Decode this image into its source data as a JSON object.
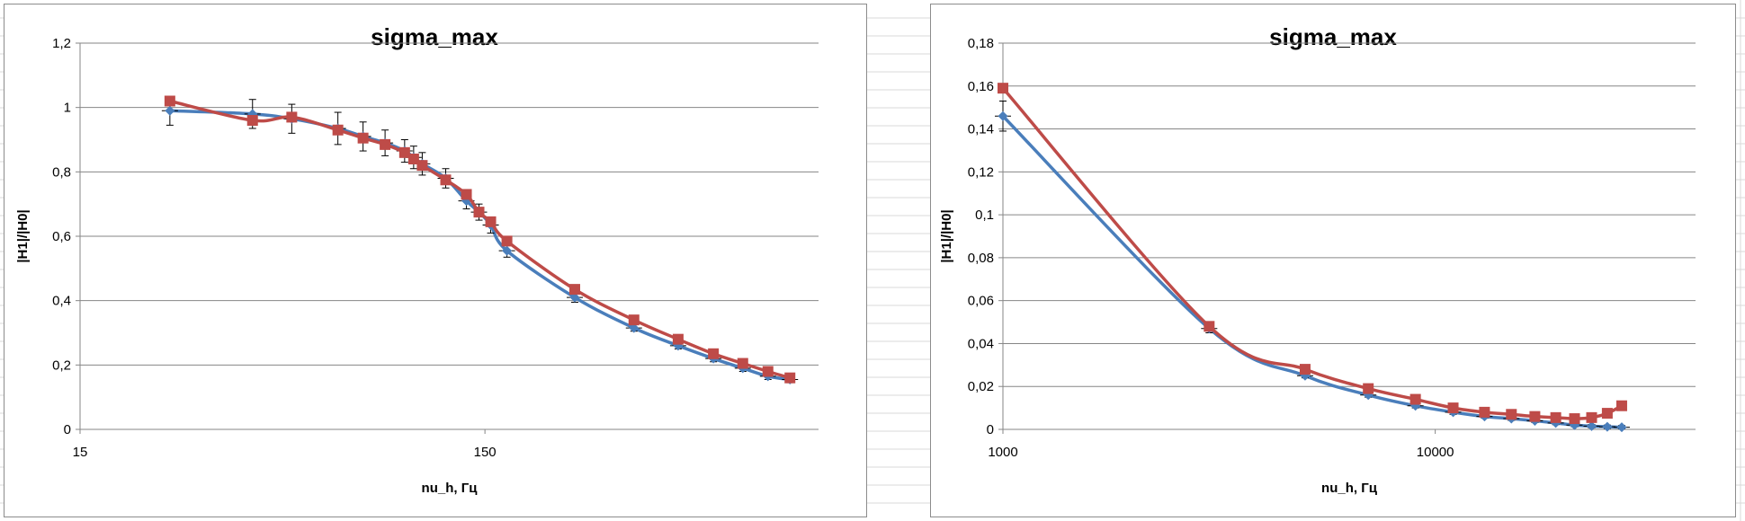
{
  "colors": {
    "series1": "#4a7ebb",
    "series2": "#be4b48",
    "grid": "#868686",
    "errorbar": "#000000",
    "sheet_grid": "#d9d9d9"
  },
  "chart_data": [
    {
      "type": "line",
      "title": "sigma_max",
      "xlabel": "nu_h, Гц",
      "ylabel": "|H1|/|H0|",
      "xscale": "log",
      "xlim": [
        15,
        1000
      ],
      "ylim": [
        0,
        1.2
      ],
      "yticks": [
        "0",
        "0,2",
        "0,4",
        "0,6",
        "0,8",
        "1",
        "1,2"
      ],
      "xticks": [
        "15",
        "150"
      ],
      "grid": true,
      "legend": "none",
      "series": [
        {
          "marker": "diamond",
          "color": "#4a7ebb",
          "x": [
            25,
            40,
            50,
            65,
            75,
            85,
            95,
            100,
            105,
            120,
            135,
            145,
            155,
            170,
            250,
            350,
            450,
            550,
            650,
            750,
            850
          ],
          "y": [
            0.99,
            0.98,
            0.965,
            0.935,
            0.91,
            0.89,
            0.865,
            0.845,
            0.825,
            0.78,
            0.71,
            0.675,
            0.635,
            0.555,
            0.41,
            0.315,
            0.26,
            0.22,
            0.19,
            0.165,
            0.155
          ],
          "yerr": [
            0.045,
            0.045,
            0.045,
            0.05,
            0.045,
            0.04,
            0.035,
            0.035,
            0.035,
            0.03,
            0.025,
            0.025,
            0.025,
            0.02,
            0.015,
            0.01,
            0.01,
            0.01,
            0.01,
            0.01,
            0.01
          ]
        },
        {
          "marker": "square",
          "color": "#be4b48",
          "x": [
            25,
            40,
            50,
            65,
            75,
            85,
            95,
            100,
            105,
            120,
            135,
            145,
            155,
            170,
            250,
            350,
            450,
            550,
            650,
            750,
            850
          ],
          "y": [
            1.02,
            0.96,
            0.97,
            0.93,
            0.905,
            0.885,
            0.86,
            0.84,
            0.82,
            0.775,
            0.73,
            0.675,
            0.645,
            0.585,
            0.435,
            0.34,
            0.28,
            0.235,
            0.205,
            0.18,
            0.16
          ]
        }
      ]
    },
    {
      "type": "line",
      "title": "sigma_max",
      "xlabel": "nu_h, Гц",
      "ylabel": "|H1|/|H0|",
      "xscale": "log",
      "xlim": [
        1000,
        40000
      ],
      "ylim": [
        0,
        0.18
      ],
      "yticks": [
        "0",
        "0,02",
        "0,04",
        "0,06",
        "0,08",
        "0,1",
        "0,12",
        "0,14",
        "0,16",
        "0,18"
      ],
      "xticks": [
        "1000",
        "10000"
      ],
      "grid": true,
      "legend": "none",
      "series": [
        {
          "marker": "diamond",
          "color": "#4a7ebb",
          "x": [
            1000,
            3000,
            5000,
            7000,
            9000,
            11000,
            13000,
            15000,
            17000,
            19000,
            21000,
            23000,
            25000,
            27000
          ],
          "y": [
            0.146,
            0.047,
            0.025,
            0.016,
            0.011,
            0.008,
            0.006,
            0.005,
            0.004,
            0.003,
            0.002,
            0.0015,
            0.0012,
            0.001
          ],
          "yerr": [
            0.007,
            0.002,
            0.001,
            0.001,
            0.001,
            0.001,
            0.0008,
            0.0008,
            0.0008,
            0.0008,
            0.0008,
            0.0008,
            0.0008,
            0.0008
          ]
        },
        {
          "marker": "square",
          "color": "#be4b48",
          "x": [
            1000,
            3000,
            5000,
            7000,
            9000,
            11000,
            13000,
            15000,
            17000,
            19000,
            21000,
            23000,
            25000,
            27000
          ],
          "y": [
            0.159,
            0.048,
            0.028,
            0.019,
            0.014,
            0.01,
            0.008,
            0.007,
            0.006,
            0.0055,
            0.005,
            0.0055,
            0.0075,
            0.011
          ]
        }
      ]
    }
  ]
}
